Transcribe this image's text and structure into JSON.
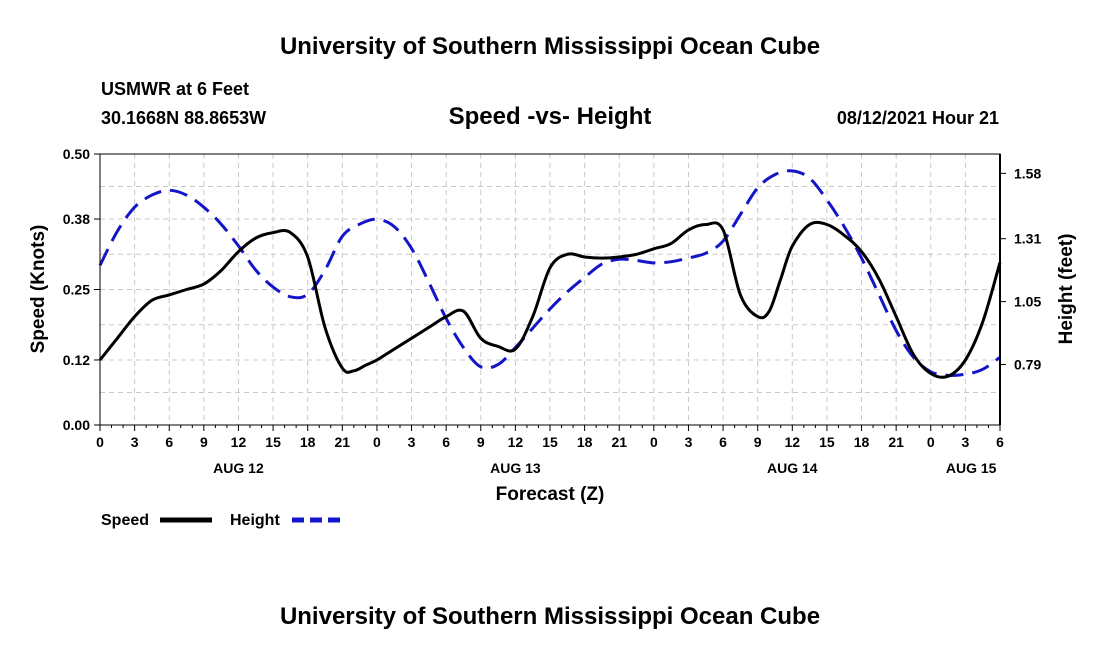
{
  "page": {
    "title_top": "University of Southern Mississippi Ocean Cube",
    "title_bottom": "University of Southern Mississippi Ocean Cube",
    "station": "USMWR at 6 Feet",
    "coords": "30.1668N  88.8653W",
    "datetime": "08/12/2021 Hour 21"
  },
  "chart_data": {
    "type": "line",
    "title": "Speed -vs- Height",
    "xlabel": "Forecast (Z)",
    "ylabel": "Speed (Knots)",
    "y2label": "Height (feet)",
    "grid": true,
    "legend_position": "bottom-left",
    "x_unit": "hours since 2021-08-12 00Z",
    "xlim": [
      0,
      78
    ],
    "ylim": [
      0.0,
      0.5
    ],
    "y2lim": [
      0.54,
      1.66
    ],
    "x_ticks": [
      0,
      3,
      6,
      9,
      12,
      15,
      18,
      21,
      24,
      27,
      30,
      33,
      36,
      39,
      42,
      45,
      48,
      51,
      54,
      57,
      60,
      63,
      66,
      69,
      72,
      75,
      78
    ],
    "x_tick_labels": [
      "0",
      "3",
      "6",
      "9",
      "12",
      "15",
      "18",
      "21",
      "0",
      "3",
      "6",
      "9",
      "12",
      "15",
      "18",
      "21",
      "0",
      "3",
      "6",
      "9",
      "12",
      "15",
      "18",
      "21",
      "0",
      "3",
      "6"
    ],
    "date_labels": [
      {
        "x": 12,
        "label": "AUG 12"
      },
      {
        "x": 36,
        "label": "AUG 13"
      },
      {
        "x": 60,
        "label": "AUG 14"
      },
      {
        "x": 75.5,
        "label": "AUG 15"
      }
    ],
    "y_ticks": [
      0.0,
      0.12,
      0.25,
      0.38,
      0.5
    ],
    "y_tick_labels": [
      "0.00",
      "0.12",
      "0.25",
      "0.38",
      "0.50"
    ],
    "y2_ticks": [
      0.79,
      1.05,
      1.31,
      1.58
    ],
    "y2_tick_labels": [
      "0.79",
      "1.05",
      "1.31",
      "1.58"
    ],
    "series": [
      {
        "name": "Speed",
        "axis": "left",
        "color": "#000000",
        "dash": "solid",
        "x": [
          0,
          1.5,
          3,
          4.5,
          6,
          7.5,
          9,
          10.5,
          12,
          13.5,
          15,
          16.5,
          18,
          19.5,
          21,
          22,
          23,
          24,
          25.5,
          27,
          28.5,
          30,
          31.5,
          33,
          34.5,
          36,
          37.5,
          39,
          40.5,
          42,
          43.5,
          45,
          46.5,
          48,
          49.5,
          51,
          52.5,
          54,
          55.5,
          57,
          58,
          59,
          60,
          61.5,
          63,
          64.5,
          66,
          67.5,
          69,
          70.5,
          72,
          73.5,
          75,
          76.5,
          78
        ],
        "values": [
          0.12,
          0.16,
          0.2,
          0.23,
          0.24,
          0.25,
          0.26,
          0.285,
          0.32,
          0.345,
          0.355,
          0.355,
          0.31,
          0.18,
          0.105,
          0.1,
          0.11,
          0.12,
          0.14,
          0.16,
          0.18,
          0.2,
          0.21,
          0.16,
          0.145,
          0.14,
          0.2,
          0.29,
          0.315,
          0.31,
          0.308,
          0.31,
          0.315,
          0.325,
          0.335,
          0.36,
          0.37,
          0.36,
          0.24,
          0.2,
          0.21,
          0.27,
          0.33,
          0.37,
          0.37,
          0.35,
          0.32,
          0.27,
          0.2,
          0.13,
          0.095,
          0.09,
          0.12,
          0.19,
          0.3
        ]
      },
      {
        "name": "Height",
        "axis": "right",
        "color": "#1414c8",
        "dash": "dashed",
        "x": [
          0,
          1.5,
          3,
          4.5,
          6,
          7.5,
          9,
          10.5,
          12,
          13.5,
          15,
          16.5,
          18,
          19.5,
          21,
          22.5,
          24,
          25.5,
          27,
          28.5,
          30,
          31.5,
          33,
          34.5,
          36,
          37.5,
          39,
          40.5,
          42,
          43.5,
          45,
          46.5,
          48,
          49.5,
          51,
          52.5,
          54,
          55.5,
          57,
          58.5,
          60,
          61.5,
          63,
          64.5,
          66,
          67.5,
          69,
          70.5,
          72,
          73.5,
          75,
          76.5,
          78
        ],
        "values": [
          1.2,
          1.34,
          1.44,
          1.49,
          1.51,
          1.49,
          1.44,
          1.37,
          1.28,
          1.18,
          1.11,
          1.07,
          1.08,
          1.18,
          1.32,
          1.37,
          1.39,
          1.36,
          1.27,
          1.13,
          0.98,
          0.86,
          0.78,
          0.79,
          0.86,
          0.94,
          1.02,
          1.09,
          1.15,
          1.205,
          1.225,
          1.22,
          1.21,
          1.215,
          1.23,
          1.25,
          1.3,
          1.41,
          1.52,
          1.575,
          1.59,
          1.56,
          1.47,
          1.36,
          1.23,
          1.08,
          0.93,
          0.82,
          0.76,
          0.745,
          0.75,
          0.77,
          0.82
        ]
      }
    ]
  }
}
